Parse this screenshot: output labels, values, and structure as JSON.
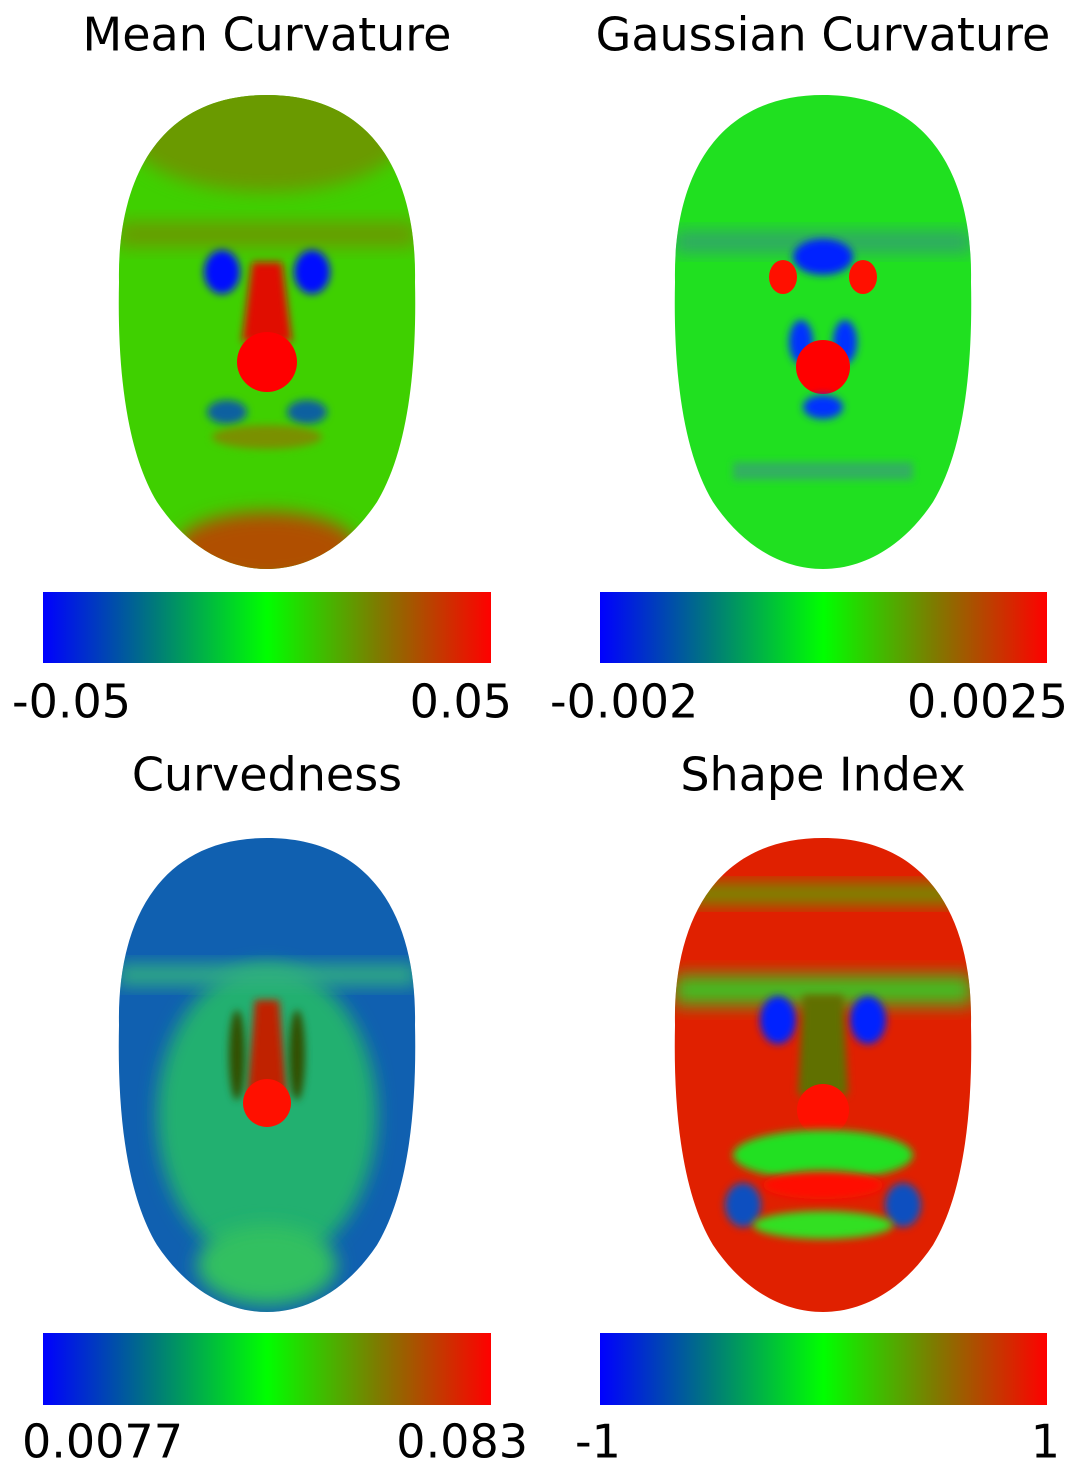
{
  "panels": [
    {
      "title": "Mean Curvature",
      "colorbar": {
        "min": "-0.05",
        "max": "0.05"
      }
    },
    {
      "title": "Gaussian Curvature",
      "colorbar": {
        "min": "-0.002",
        "max": "0.0025"
      }
    },
    {
      "title": "Curvedness",
      "colorbar": {
        "min": "0.0077",
        "max": "0.083"
      }
    },
    {
      "title": "Shape Index",
      "colorbar": {
        "min": "-1",
        "max": "1"
      }
    }
  ]
}
